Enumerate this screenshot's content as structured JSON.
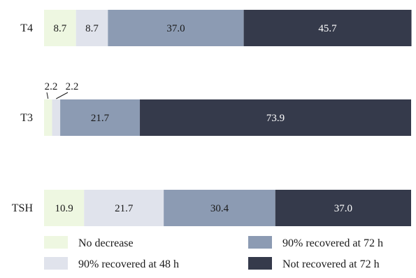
{
  "chart_data": {
    "type": "bar",
    "orientation": "horizontal",
    "stacked": true,
    "title": "",
    "xlabel": "",
    "ylabel": "",
    "xlim": [
      0,
      100
    ],
    "grid": false,
    "legend_position": "bottom",
    "categories": [
      "T4",
      "T3",
      "TSH"
    ],
    "series": [
      {
        "name": "No decrease",
        "color": "#eef7e1",
        "label_color": "#1a1a1a",
        "values": [
          8.7,
          2.2,
          10.9
        ],
        "labels": [
          "8.7",
          "2.2",
          "10.9"
        ]
      },
      {
        "name": "90% recovered at 48 h",
        "color": "#e0e3ec",
        "label_color": "#1a1a1a",
        "values": [
          8.7,
          2.2,
          21.7
        ],
        "labels": [
          "8.7",
          "2.2",
          "21.7"
        ]
      },
      {
        "name": "90% recovered at 72 h",
        "color": "#8c9bb3",
        "label_color": "#1a1a1a",
        "values": [
          37.0,
          21.7,
          30.4
        ],
        "labels": [
          "37.0",
          "21.7",
          "30.4"
        ]
      },
      {
        "name": "Not recovered at 72 h",
        "color": "#353a4b",
        "label_color": "#ffffff",
        "values": [
          45.7,
          73.9,
          37.0
        ],
        "labels": [
          "45.7",
          "73.9",
          "37.0"
        ]
      }
    ]
  }
}
